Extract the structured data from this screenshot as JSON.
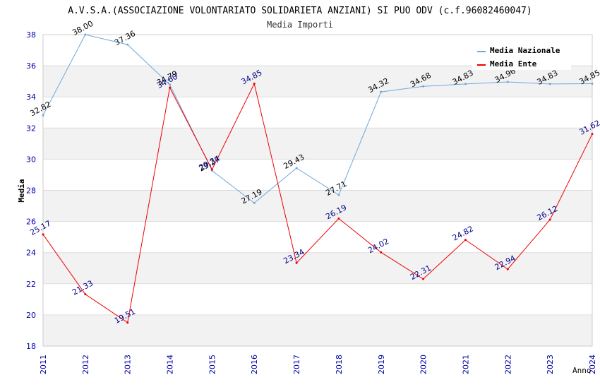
{
  "chart_data": {
    "type": "line",
    "title": "A.V.S.A.(ASSOCIAZIONE VOLONTARIATO SOLIDARIETA ANZIANI) SI PUO ODV (c.f.96082460047)",
    "subtitle": "Media Importi",
    "xlabel": "Anno",
    "ylabel": "Media",
    "ylim": [
      18,
      38
    ],
    "yticks": [
      "18",
      "20",
      "22",
      "24",
      "26",
      "28",
      "30",
      "32",
      "34",
      "36",
      "38"
    ],
    "categories": [
      "2011",
      "2012",
      "2013",
      "2014",
      "2015",
      "2016",
      "2017",
      "2018",
      "2019",
      "2020",
      "2021",
      "2022",
      "2023",
      "2024"
    ],
    "legend_position": "top-right",
    "grid": true,
    "series": [
      {
        "name": "Media Nazionale",
        "color": "#6fa8dc",
        "label_color": "#000000",
        "values": [
          32.82,
          38.0,
          37.36,
          34.79,
          29.27,
          27.19,
          29.43,
          27.71,
          34.32,
          34.68,
          34.83,
          34.96,
          34.83,
          34.85
        ],
        "labels": [
          "32.82",
          "38.00",
          "37.36",
          "34.79",
          "29.27",
          "27.19",
          "29.43",
          "27.71",
          "34.32",
          "34.68",
          "34.83",
          "34.96",
          "34.83",
          "34.85"
        ]
      },
      {
        "name": "Media Ente",
        "color": "#ee0000",
        "label_color": "#00008b",
        "values": [
          25.17,
          21.33,
          19.51,
          34.6,
          29.34,
          34.85,
          23.34,
          26.19,
          24.02,
          22.31,
          24.82,
          22.94,
          26.12,
          31.62
        ],
        "labels": [
          "25.17",
          "21.33",
          "19.51",
          "34.60",
          "29.34",
          "34.85",
          "23.34",
          "26.19",
          "24.02",
          "22.31",
          "24.82",
          "22.94",
          "26.12",
          "31.62"
        ]
      }
    ]
  }
}
